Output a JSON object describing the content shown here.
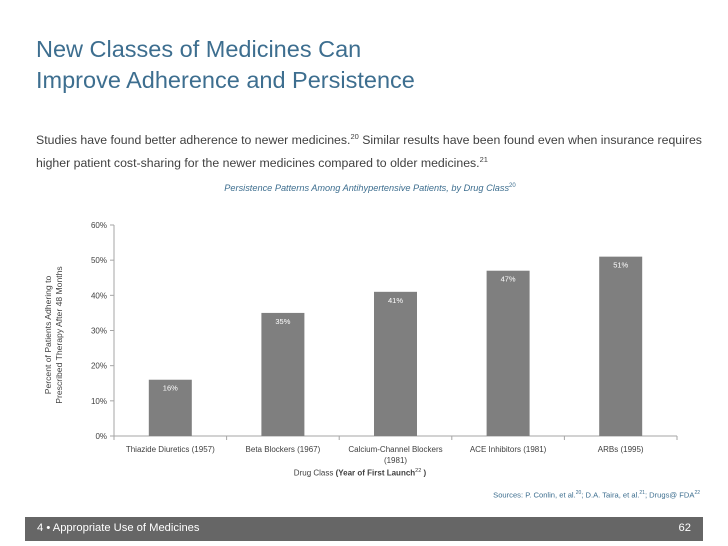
{
  "slide": {
    "title_line1": "New Classes of Medicines Can",
    "title_line2": "Improve Adherence and Persistence",
    "subtitle_part1": "Studies have found better adherence to newer medicines.",
    "subtitle_ref1": "20",
    "subtitle_part2": " Similar results have been found even when insurance requires higher patient cost-sharing for the newer medicines compared to older medicines.",
    "subtitle_ref2": "21",
    "chart_title": "Persistence Patterns Among Antihypertensive Patients, by Drug Class",
    "chart_title_ref": "20",
    "ylabel_line1": "Percent of Patients Adhering to",
    "ylabel_line2": "Prescribed Therapy After 48 Months",
    "xlabel_prefix": "Drug Class ",
    "xlabel_bold": "(Year of First Launch",
    "xlabel_ref": "22",
    "xlabel_suffix": " )",
    "sources_prefix": "Sources: P. Conlin, et al.",
    "sources_ref1": "20",
    "sources_mid1": "; D.A. Taira, et al.",
    "sources_ref2": "21",
    "sources_mid2": "; Drugs@ FDA",
    "sources_ref3": "22",
    "footer_left": "4 • Appropriate Use of Medicines",
    "footer_right": "62"
  },
  "chart_data": {
    "type": "bar",
    "title": "Persistence Patterns Among Antihypertensive Patients, by Drug Class",
    "xlabel": "Drug Class (Year of First Launch)",
    "ylabel": "Percent of Patients Adhering to Prescribed Therapy After 48 Months",
    "categories": [
      [
        "Thiazide Diuretics (1957)"
      ],
      [
        "Beta Blockers (1967)"
      ],
      [
        "Calcium-Channel Blockers",
        "(1981)"
      ],
      [
        "ACE Inhibitors (1981)"
      ],
      [
        "ARBs (1995)"
      ]
    ],
    "values": [
      16,
      35,
      41,
      47,
      51
    ],
    "value_labels": [
      "16%",
      "35%",
      "41%",
      "47%",
      "51%"
    ],
    "yticks": [
      0,
      10,
      20,
      30,
      40,
      50,
      60
    ],
    "ytick_labels": [
      "0%",
      "10%",
      "20%",
      "30%",
      "40%",
      "50%",
      "60%"
    ],
    "ylim": [
      0,
      60
    ],
    "bar_color": "#7f7f7f",
    "grid": false,
    "legend": "none"
  }
}
